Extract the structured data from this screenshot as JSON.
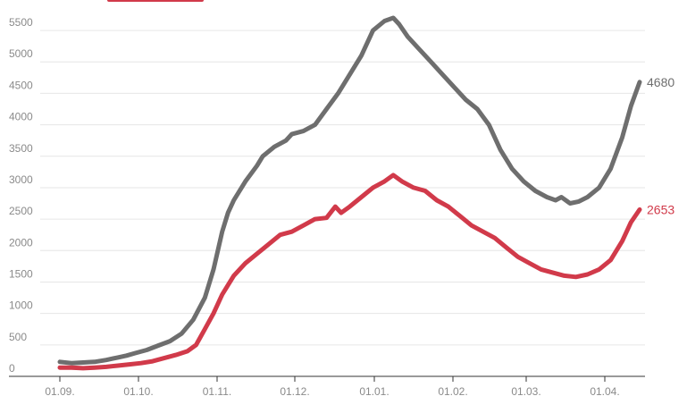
{
  "colors": {
    "grey": "#6e6e6e",
    "red": "#d13a4a",
    "grid": "#e6e6e6",
    "axis": "#333333",
    "tick": "#8a8a8a"
  },
  "chart_data": {
    "type": "line",
    "title": "",
    "xlabel": "",
    "ylabel": "",
    "x_ticks": [
      "01.09.",
      "01.10.",
      "01.11.",
      "01.12.",
      "01.01.",
      "01.02.",
      "01.03.",
      "01.04."
    ],
    "y_ticks": [
      "0",
      "500",
      "1000",
      "1500",
      "2000",
      "2500",
      "3000",
      "3500",
      "4000",
      "4500",
      "5000",
      "5500"
    ],
    "ylim": [
      0,
      5700
    ],
    "xlim": [
      0,
      1
    ],
    "grid": true,
    "legend": "top-left",
    "end_labels": [
      "4680",
      "2653"
    ],
    "series": [
      {
        "color_key": "grey",
        "points": [
          [
            0.0,
            230
          ],
          [
            0.02,
            210
          ],
          [
            0.04,
            220
          ],
          [
            0.06,
            230
          ],
          [
            0.08,
            260
          ],
          [
            0.1,
            300
          ],
          [
            0.115,
            330
          ],
          [
            0.13,
            370
          ],
          [
            0.15,
            420
          ],
          [
            0.17,
            490
          ],
          [
            0.19,
            560
          ],
          [
            0.21,
            680
          ],
          [
            0.23,
            900
          ],
          [
            0.25,
            1250
          ],
          [
            0.265,
            1700
          ],
          [
            0.28,
            2300
          ],
          [
            0.29,
            2600
          ],
          [
            0.3,
            2800
          ],
          [
            0.32,
            3100
          ],
          [
            0.34,
            3350
          ],
          [
            0.35,
            3500
          ],
          [
            0.37,
            3650
          ],
          [
            0.39,
            3750
          ],
          [
            0.4,
            3850
          ],
          [
            0.42,
            3900
          ],
          [
            0.44,
            4000
          ],
          [
            0.46,
            4250
          ],
          [
            0.48,
            4500
          ],
          [
            0.5,
            4800
          ],
          [
            0.52,
            5100
          ],
          [
            0.54,
            5500
          ],
          [
            0.56,
            5650
          ],
          [
            0.575,
            5700
          ],
          [
            0.585,
            5600
          ],
          [
            0.6,
            5400
          ],
          [
            0.62,
            5200
          ],
          [
            0.64,
            5000
          ],
          [
            0.66,
            4800
          ],
          [
            0.68,
            4600
          ],
          [
            0.7,
            4400
          ],
          [
            0.72,
            4250
          ],
          [
            0.74,
            4000
          ],
          [
            0.76,
            3600
          ],
          [
            0.78,
            3300
          ],
          [
            0.8,
            3100
          ],
          [
            0.82,
            2950
          ],
          [
            0.84,
            2850
          ],
          [
            0.855,
            2800
          ],
          [
            0.865,
            2850
          ],
          [
            0.88,
            2750
          ],
          [
            0.895,
            2780
          ],
          [
            0.91,
            2850
          ],
          [
            0.93,
            3000
          ],
          [
            0.95,
            3300
          ],
          [
            0.97,
            3800
          ],
          [
            0.985,
            4300
          ],
          [
            1.0,
            4680
          ]
        ]
      },
      {
        "color_key": "red",
        "points": [
          [
            0.0,
            140
          ],
          [
            0.02,
            140
          ],
          [
            0.04,
            130
          ],
          [
            0.06,
            140
          ],
          [
            0.08,
            150
          ],
          [
            0.1,
            170
          ],
          [
            0.12,
            190
          ],
          [
            0.14,
            210
          ],
          [
            0.16,
            240
          ],
          [
            0.18,
            290
          ],
          [
            0.2,
            340
          ],
          [
            0.22,
            400
          ],
          [
            0.235,
            500
          ],
          [
            0.25,
            750
          ],
          [
            0.265,
            1000
          ],
          [
            0.28,
            1300
          ],
          [
            0.3,
            1600
          ],
          [
            0.32,
            1800
          ],
          [
            0.34,
            1950
          ],
          [
            0.36,
            2100
          ],
          [
            0.38,
            2250
          ],
          [
            0.4,
            2300
          ],
          [
            0.42,
            2400
          ],
          [
            0.44,
            2500
          ],
          [
            0.46,
            2520
          ],
          [
            0.475,
            2700
          ],
          [
            0.485,
            2600
          ],
          [
            0.5,
            2700
          ],
          [
            0.52,
            2850
          ],
          [
            0.54,
            3000
          ],
          [
            0.56,
            3100
          ],
          [
            0.575,
            3200
          ],
          [
            0.59,
            3100
          ],
          [
            0.61,
            3000
          ],
          [
            0.63,
            2950
          ],
          [
            0.65,
            2800
          ],
          [
            0.67,
            2700
          ],
          [
            0.69,
            2550
          ],
          [
            0.71,
            2400
          ],
          [
            0.73,
            2300
          ],
          [
            0.75,
            2200
          ],
          [
            0.77,
            2050
          ],
          [
            0.79,
            1900
          ],
          [
            0.81,
            1800
          ],
          [
            0.83,
            1700
          ],
          [
            0.85,
            1650
          ],
          [
            0.87,
            1600
          ],
          [
            0.89,
            1580
          ],
          [
            0.91,
            1620
          ],
          [
            0.93,
            1700
          ],
          [
            0.95,
            1850
          ],
          [
            0.97,
            2150
          ],
          [
            0.985,
            2450
          ],
          [
            1.0,
            2653
          ]
        ]
      }
    ]
  }
}
